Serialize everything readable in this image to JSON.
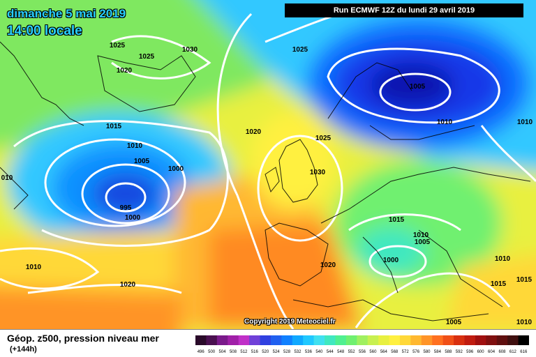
{
  "header": {
    "date": "dimanche 5 mai 2019",
    "time": "14:00 locale",
    "run": "Run ECMWF 12Z du lundi 29 avril 2019"
  },
  "copyright": "Copyright 2019 Meteociel.fr",
  "footer": {
    "title": "Géop. z500, pression niveau mer",
    "subtitle": "(+144h)"
  },
  "legend_values": [
    "496",
    "500",
    "504",
    "508",
    "512",
    "516",
    "520",
    "524",
    "528",
    "532",
    "536",
    "540",
    "544",
    "548",
    "552",
    "556",
    "560",
    "564",
    "568",
    "572",
    "576",
    "580",
    "584",
    "588",
    "592",
    "596",
    "600",
    "604",
    "608",
    "612",
    "616"
  ],
  "legend_colors": [
    "#2a0a2a",
    "#4a1050",
    "#7a1a8a",
    "#a020a8",
    "#c030c8",
    "#7040d8",
    "#3040e0",
    "#2060f0",
    "#1080ff",
    "#10a8ff",
    "#20c8ff",
    "#40e0f0",
    "#40e8c0",
    "#50f090",
    "#70f070",
    "#a0f060",
    "#c8f050",
    "#e8f040",
    "#fff040",
    "#ffd838",
    "#ffb830",
    "#ff9428",
    "#ff7020",
    "#f05018",
    "#d83010",
    "#c01c10",
    "#a01010",
    "#801010",
    "#601010",
    "#401010",
    "#000000"
  ],
  "isobar_labels": [
    {
      "text": "1025"
    },
    {
      "text": "1020"
    },
    {
      "text": "1025"
    },
    {
      "text": "1030"
    },
    {
      "text": "1025"
    },
    {
      "text": "1005"
    },
    {
      "text": "1015"
    },
    {
      "text": "1010"
    },
    {
      "text": "1005"
    },
    {
      "text": "1000"
    },
    {
      "text": "995"
    },
    {
      "text": "1000"
    },
    {
      "text": "1020"
    },
    {
      "text": "1025"
    },
    {
      "text": "1030"
    },
    {
      "text": "1010"
    },
    {
      "text": "1010"
    },
    {
      "text": "1015"
    },
    {
      "text": "1010"
    },
    {
      "text": "1005"
    },
    {
      "text": "1000"
    },
    {
      "text": "1020"
    },
    {
      "text": "1010"
    },
    {
      "text": "1020"
    },
    {
      "text": "1010"
    },
    {
      "text": "1015"
    },
    {
      "text": "1015"
    },
    {
      "text": "1005"
    },
    {
      "text": "1010"
    },
    {
      "text": "010"
    }
  ]
}
